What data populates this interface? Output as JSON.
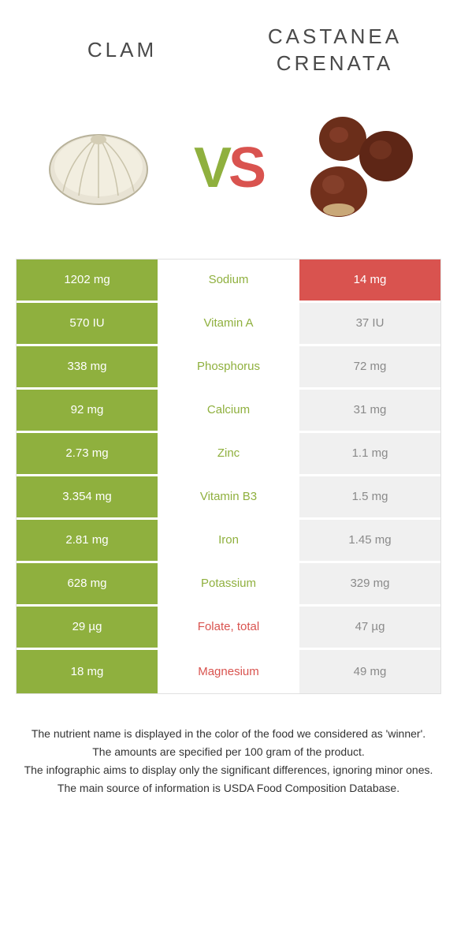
{
  "header": {
    "left": "CLAM",
    "right_line1": "CASTANEA",
    "right_line2": "CRENATA"
  },
  "vs": {
    "v": "V",
    "s": "S"
  },
  "colors": {
    "green": "#8fb03e",
    "red": "#d9534f",
    "grey_bg": "#f0f0f0",
    "grey_text": "#8a8a8a",
    "white": "#ffffff"
  },
  "rows": [
    {
      "left": "1202 mg",
      "mid": "Sodium",
      "right": "14 mg",
      "winner": "left",
      "leftBg": "green",
      "rightBg": "red"
    },
    {
      "left": "570 IU",
      "mid": "Vitamin A",
      "right": "37 IU",
      "winner": "left",
      "leftBg": "green",
      "rightBg": "grey"
    },
    {
      "left": "338 mg",
      "mid": "Phosphorus",
      "right": "72 mg",
      "winner": "left",
      "leftBg": "green",
      "rightBg": "grey"
    },
    {
      "left": "92 mg",
      "mid": "Calcium",
      "right": "31 mg",
      "winner": "left",
      "leftBg": "green",
      "rightBg": "grey"
    },
    {
      "left": "2.73 mg",
      "mid": "Zinc",
      "right": "1.1 mg",
      "winner": "left",
      "leftBg": "green",
      "rightBg": "grey"
    },
    {
      "left": "3.354 mg",
      "mid": "Vitamin B3",
      "right": "1.5 mg",
      "winner": "left",
      "leftBg": "green",
      "rightBg": "grey"
    },
    {
      "left": "2.81 mg",
      "mid": "Iron",
      "right": "1.45 mg",
      "winner": "left",
      "leftBg": "green",
      "rightBg": "grey"
    },
    {
      "left": "628 mg",
      "mid": "Potassium",
      "right": "329 mg",
      "winner": "left",
      "leftBg": "green",
      "rightBg": "grey"
    },
    {
      "left": "29 µg",
      "mid": "Folate, total",
      "right": "47 µg",
      "winner": "right",
      "leftBg": "green",
      "rightBg": "grey"
    },
    {
      "left": "18 mg",
      "mid": "Magnesium",
      "right": "49 mg",
      "winner": "right",
      "leftBg": "green",
      "rightBg": "grey"
    }
  ],
  "footer": {
    "l1": "The nutrient name is displayed in the color of the food we considered as 'winner'.",
    "l2": "The amounts are specified per 100 gram of the product.",
    "l3": "The infographic aims to display only the significant differences, ignoring minor ones.",
    "l4": "The main source of information is USDA Food Composition Database."
  }
}
